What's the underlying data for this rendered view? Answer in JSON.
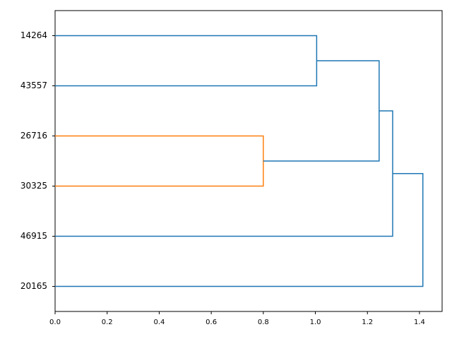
{
  "chart_data": {
    "type": "dendrogram",
    "xlim": [
      0,
      1.487
    ],
    "xticks": [
      {
        "value": 0,
        "label": "0.0"
      },
      0.2,
      0.4,
      0.6,
      0.8,
      {
        "value": 1,
        "label": "1.0"
      },
      1.2,
      1.4
    ],
    "tree": {
      "height": 1.413,
      "color": "#1f77b4",
      "children": [
        {
          "height": 1.297,
          "color": "#1f77b4",
          "children": [
            {
              "height": 1.245,
              "color": "#1f77b4",
              "children": [
                {
                  "height": 1.005,
                  "color": "#1f77b4",
                  "children": [
                    {
                      "label": "14264"
                    },
                    {
                      "label": "43557"
                    }
                  ]
                },
                {
                  "height": 0.8,
                  "color": "#ff7f0e",
                  "children": [
                    {
                      "label": "26716"
                    },
                    {
                      "label": "30325"
                    }
                  ]
                }
              ]
            },
            {
              "label": "46915"
            }
          ]
        },
        {
          "label": "20165"
        }
      ]
    }
  }
}
